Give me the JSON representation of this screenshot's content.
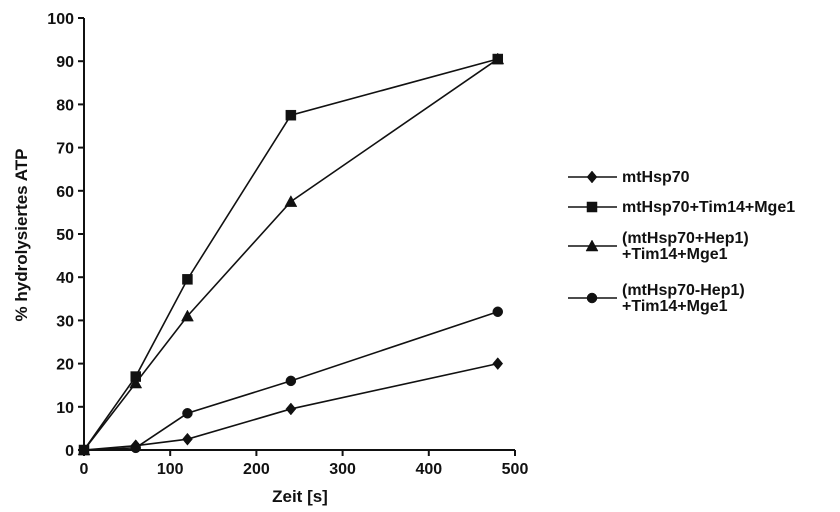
{
  "chart_data": {
    "type": "line",
    "title": "",
    "xlabel": "Zeit [s]",
    "ylabel": "% hydrolysiertes ATP",
    "xlim": [
      0,
      500
    ],
    "ylim": [
      0,
      100
    ],
    "xticks": [
      0,
      100,
      200,
      300,
      400,
      500
    ],
    "yticks": [
      0,
      10,
      20,
      30,
      40,
      50,
      60,
      70,
      80,
      90,
      100
    ],
    "grid": false,
    "legend_position": "right",
    "series": [
      {
        "name": "mtHsp70",
        "legend_lines": [
          "mtHsp70"
        ],
        "marker": "diamond",
        "x": [
          0,
          60,
          120,
          240,
          480
        ],
        "y": [
          0,
          1,
          2.5,
          9.5,
          20
        ]
      },
      {
        "name": "mtHsp70+Tim14+Mge1",
        "legend_lines": [
          "mtHsp70+Tim14+Mge1"
        ],
        "marker": "square",
        "x": [
          0,
          60,
          120,
          240,
          480
        ],
        "y": [
          0,
          17,
          39.5,
          77.5,
          90.5
        ]
      },
      {
        "name": "(mtHsp70+Hep1)+Tim14+Mge1",
        "legend_lines": [
          "(mtHsp70+Hep1)",
          "+Tim14+Mge1"
        ],
        "marker": "triangle",
        "x": [
          0,
          60,
          120,
          240,
          480
        ],
        "y": [
          0,
          15.5,
          31,
          57.5,
          90.5
        ]
      },
      {
        "name": "(mtHsp70-Hep1)+Tim14+Mge1",
        "legend_lines": [
          "(mtHsp70-Hep1)",
          "+Tim14+Mge1"
        ],
        "marker": "circle",
        "x": [
          0,
          60,
          120,
          240,
          480
        ],
        "y": [
          0,
          0.5,
          8.5,
          16,
          32
        ]
      }
    ]
  }
}
